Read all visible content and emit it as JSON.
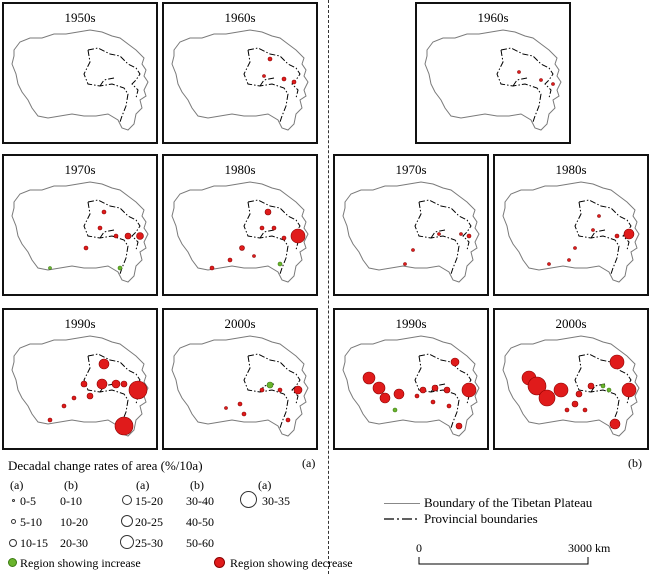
{
  "panels": {
    "a_1950s": "1950s",
    "a_1960s": "1960s",
    "a_1970s": "1970s",
    "a_1980s": "1980s",
    "a_1990s": "1990s",
    "a_2000s": "2000s",
    "b_1960s": "1960s",
    "b_1970s": "1970s",
    "b_1980s": "1980s",
    "b_1990s": "1990s",
    "b_2000s": "2000s"
  },
  "tags": {
    "a": "(a)",
    "b": "(b)"
  },
  "legend": {
    "title": "Decadal change rates of area (%/10a)",
    "col_a1": "(a)",
    "col_b1": "(b)",
    "col_a2": "(a)",
    "col_b2": "(b)",
    "col_a3": "(a)",
    "rows": [
      {
        "a1": "0-5",
        "b1": "0-10",
        "a2": "15-20",
        "b2": "30-40"
      },
      {
        "a1": "5-10",
        "b1": "10-20",
        "a2": "20-25",
        "b2": "40-50"
      },
      {
        "a1": "10-15",
        "b1": "20-30",
        "a2": "25-30",
        "b2": "50-60"
      }
    ],
    "a3": "30-35",
    "increase": "Region showing increase",
    "decrease": "Region showing decrease",
    "boundary": "Boundary of the Tibetan Plateau",
    "provincial": "Provincial boundaries",
    "scale_start": "0",
    "scale_end": "3000 km",
    "increase_color": "#6ab42d",
    "decrease_color": "#e01b1b"
  }
}
